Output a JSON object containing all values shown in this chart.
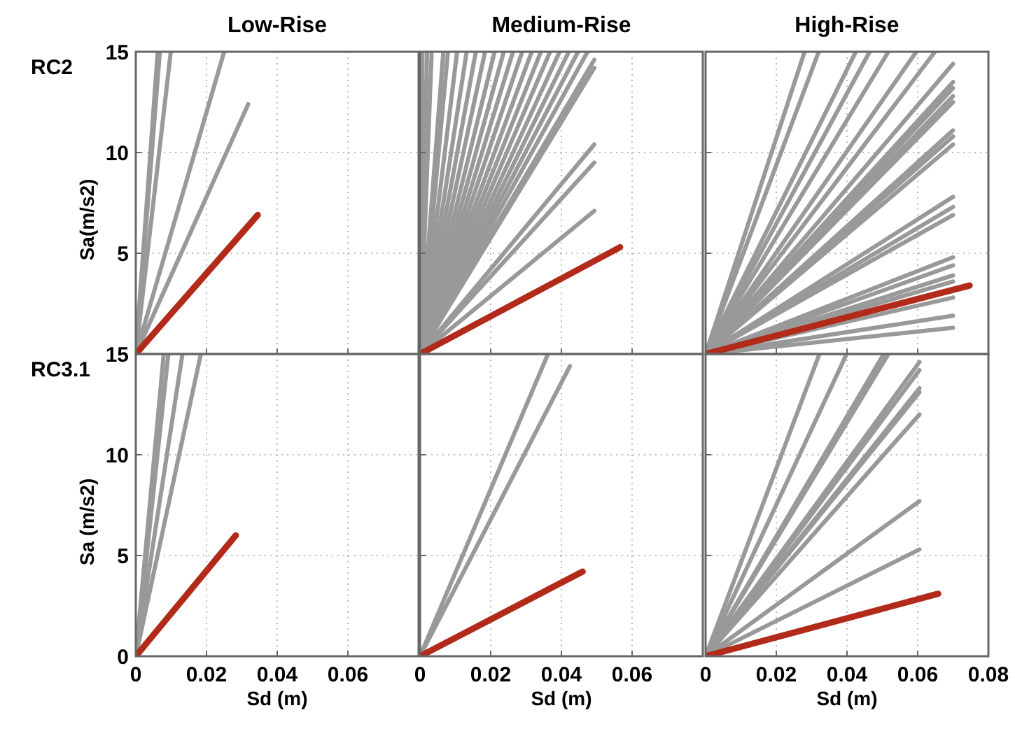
{
  "chart_data": [
    {
      "type": "line",
      "title": "Low-Rise",
      "ylabel": "Sa(m/s2)",
      "annotations": [
        "RC2"
      ],
      "xlim": [
        0,
        0.08
      ],
      "ylim": [
        0,
        15
      ],
      "xticks": [
        0,
        0.02,
        0.04,
        0.06
      ],
      "yticks": [
        5,
        10,
        15
      ],
      "grid": true,
      "tick_labels": "y",
      "marker": "none",
      "series": [
        {
          "color": "#999999",
          "x": [
            0,
            0.0062
          ],
          "values": [
            0,
            15
          ]
        },
        {
          "color": "#999999",
          "x": [
            0,
            0.0068
          ],
          "values": [
            0,
            15
          ]
        },
        {
          "color": "#999999",
          "x": [
            0,
            0.0099
          ],
          "values": [
            0,
            15
          ]
        },
        {
          "color": "#999999",
          "x": [
            0,
            0.025
          ],
          "values": [
            0,
            15
          ]
        },
        {
          "color": "#999999",
          "x": [
            0,
            0.0318
          ],
          "values": [
            0,
            12.4
          ]
        },
        {
          "color": "#b22a1a",
          "x": [
            0,
            0.0345
          ],
          "values": [
            0,
            6.9
          ]
        }
      ]
    },
    {
      "type": "line",
      "title": "Medium-Rise",
      "xlim": [
        0,
        0.08
      ],
      "ylim": [
        0,
        15
      ],
      "xticks": [
        0,
        0.02,
        0.04,
        0.06
      ],
      "yticks": [
        5,
        10,
        15
      ],
      "grid": true,
      "tick_labels": false,
      "marker": "none",
      "series": [
        {
          "color": "#999999",
          "x": [
            0,
            0.0007
          ],
          "values": [
            0,
            15
          ]
        },
        {
          "color": "#999999",
          "x": [
            0,
            0.002
          ],
          "values": [
            0,
            15
          ]
        },
        {
          "color": "#999999",
          "x": [
            0,
            0.0033
          ],
          "values": [
            0,
            15
          ]
        },
        {
          "color": "#999999",
          "x": [
            0,
            0.0066
          ],
          "values": [
            0,
            15
          ]
        },
        {
          "color": "#999999",
          "x": [
            0,
            0.0079
          ],
          "values": [
            0,
            15
          ]
        },
        {
          "color": "#999999",
          "x": [
            0,
            0.0105
          ],
          "values": [
            0,
            15
          ]
        },
        {
          "color": "#999999",
          "x": [
            0,
            0.0132
          ],
          "values": [
            0,
            15
          ]
        },
        {
          "color": "#999999",
          "x": [
            0,
            0.0158
          ],
          "values": [
            0,
            15
          ]
        },
        {
          "color": "#999999",
          "x": [
            0,
            0.0184
          ],
          "values": [
            0,
            15
          ]
        },
        {
          "color": "#999999",
          "x": [
            0,
            0.0211
          ],
          "values": [
            0,
            15
          ]
        },
        {
          "color": "#999999",
          "x": [
            0,
            0.0237
          ],
          "values": [
            0,
            15
          ]
        },
        {
          "color": "#999999",
          "x": [
            0,
            0.0263
          ],
          "values": [
            0,
            15
          ]
        },
        {
          "color": "#999999",
          "x": [
            0,
            0.0289
          ],
          "values": [
            0,
            15
          ]
        },
        {
          "color": "#999999",
          "x": [
            0,
            0.0316
          ],
          "values": [
            0,
            15
          ]
        },
        {
          "color": "#999999",
          "x": [
            0,
            0.0342
          ],
          "values": [
            0,
            15
          ]
        },
        {
          "color": "#999999",
          "x": [
            0,
            0.0368
          ],
          "values": [
            0,
            15
          ]
        },
        {
          "color": "#999999",
          "x": [
            0,
            0.0395
          ],
          "values": [
            0,
            15
          ]
        },
        {
          "color": "#999999",
          "x": [
            0,
            0.0421
          ],
          "values": [
            0,
            15
          ]
        },
        {
          "color": "#999999",
          "x": [
            0,
            0.0447
          ],
          "values": [
            0,
            15
          ]
        },
        {
          "color": "#999999",
          "x": [
            0,
            0.0474
          ],
          "values": [
            0,
            15
          ]
        },
        {
          "color": "#999999",
          "x": [
            0,
            0.0493
          ],
          "values": [
            0,
            14.6
          ]
        },
        {
          "color": "#999999",
          "x": [
            0,
            0.0493
          ],
          "values": [
            0,
            14.2
          ]
        },
        {
          "color": "#999999",
          "x": [
            0,
            0.0493
          ],
          "values": [
            0,
            10.4
          ]
        },
        {
          "color": "#999999",
          "x": [
            0,
            0.0493
          ],
          "values": [
            0,
            9.5
          ]
        },
        {
          "color": "#999999",
          "x": [
            0,
            0.0493
          ],
          "values": [
            0,
            7.1
          ]
        },
        {
          "color": "#b22a1a",
          "x": [
            0,
            0.0566
          ],
          "values": [
            0,
            5.3
          ]
        }
      ]
    },
    {
      "type": "line",
      "title": "High-Rise",
      "xlim": [
        0,
        0.08
      ],
      "ylim": [
        0,
        15
      ],
      "xticks": [
        0,
        0.02,
        0.04,
        0.06,
        0.08
      ],
      "yticks": [
        5,
        10,
        15
      ],
      "grid": true,
      "tick_labels": false,
      "marker": "none",
      "series": [
        {
          "color": "#999999",
          "x": [
            0,
            0.028
          ],
          "values": [
            0,
            15
          ]
        },
        {
          "color": "#999999",
          "x": [
            0,
            0.032
          ],
          "values": [
            0,
            15
          ]
        },
        {
          "color": "#999999",
          "x": [
            0,
            0.0425
          ],
          "values": [
            0,
            15
          ]
        },
        {
          "color": "#999999",
          "x": [
            0,
            0.0464
          ],
          "values": [
            0,
            15
          ]
        },
        {
          "color": "#999999",
          "x": [
            0,
            0.0517
          ],
          "values": [
            0,
            15
          ]
        },
        {
          "color": "#999999",
          "x": [
            0,
            0.0596
          ],
          "values": [
            0,
            15
          ]
        },
        {
          "color": "#999999",
          "x": [
            0,
            0.0649
          ],
          "values": [
            0,
            15
          ]
        },
        {
          "color": "#999999",
          "x": [
            0,
            0.07
          ],
          "values": [
            0,
            14.4
          ]
        },
        {
          "color": "#999999",
          "x": [
            0,
            0.07
          ],
          "values": [
            0,
            13.5
          ]
        },
        {
          "color": "#999999",
          "x": [
            0,
            0.07
          ],
          "values": [
            0,
            13.2
          ]
        },
        {
          "color": "#999999",
          "x": [
            0,
            0.07
          ],
          "values": [
            0,
            12.8
          ]
        },
        {
          "color": "#999999",
          "x": [
            0,
            0.07
          ],
          "values": [
            0,
            12.5
          ]
        },
        {
          "color": "#999999",
          "x": [
            0,
            0.07
          ],
          "values": [
            0,
            11.1
          ]
        },
        {
          "color": "#999999",
          "x": [
            0,
            0.07
          ],
          "values": [
            0,
            10.8
          ]
        },
        {
          "color": "#999999",
          "x": [
            0,
            0.07
          ],
          "values": [
            0,
            10.4
          ]
        },
        {
          "color": "#999999",
          "x": [
            0,
            0.07
          ],
          "values": [
            0,
            7.8
          ]
        },
        {
          "color": "#999999",
          "x": [
            0,
            0.07
          ],
          "values": [
            0,
            7.3
          ]
        },
        {
          "color": "#999999",
          "x": [
            0,
            0.07
          ],
          "values": [
            0,
            6.9
          ]
        },
        {
          "color": "#999999",
          "x": [
            0,
            0.07
          ],
          "values": [
            0,
            4.8
          ]
        },
        {
          "color": "#999999",
          "x": [
            0,
            0.07
          ],
          "values": [
            0,
            4.4
          ]
        },
        {
          "color": "#999999",
          "x": [
            0,
            0.07
          ],
          "values": [
            0,
            3.9
          ]
        },
        {
          "color": "#999999",
          "x": [
            0,
            0.07
          ],
          "values": [
            0,
            3.6
          ]
        },
        {
          "color": "#999999",
          "x": [
            0,
            0.07
          ],
          "values": [
            0,
            2.8
          ]
        },
        {
          "color": "#999999",
          "x": [
            0,
            0.07
          ],
          "values": [
            0,
            1.9
          ]
        },
        {
          "color": "#999999",
          "x": [
            0,
            0.07
          ],
          "values": [
            0,
            1.3
          ]
        },
        {
          "color": "#b22a1a",
          "x": [
            0,
            0.0747
          ],
          "values": [
            0,
            3.4
          ]
        }
      ]
    },
    {
      "type": "line",
      "xlabel": "Sd (m)",
      "ylabel": "Sa (m/s2)",
      "annotations": [
        "RC3.1"
      ],
      "xlim": [
        0,
        0.08
      ],
      "ylim": [
        0,
        15
      ],
      "xticks": [
        0,
        0.02,
        0.04,
        0.06
      ],
      "yticks": [
        0,
        5,
        10,
        15
      ],
      "grid": true,
      "marker": "none",
      "series": [
        {
          "color": "#999999",
          "x": [
            0,
            0.0079
          ],
          "values": [
            0,
            15
          ]
        },
        {
          "color": "#999999",
          "x": [
            0,
            0.0092
          ],
          "values": [
            0,
            15
          ]
        },
        {
          "color": "#999999",
          "x": [
            0,
            0.0132
          ],
          "values": [
            0,
            15
          ]
        },
        {
          "color": "#999999",
          "x": [
            0,
            0.0184
          ],
          "values": [
            0,
            15
          ]
        },
        {
          "color": "#b22a1a",
          "x": [
            0,
            0.0283
          ],
          "values": [
            0,
            6.0
          ]
        }
      ]
    },
    {
      "type": "line",
      "xlabel": "Sd (m)",
      "xlim": [
        0,
        0.08
      ],
      "ylim": [
        0,
        15
      ],
      "xticks": [
        0,
        0.02,
        0.04,
        0.06
      ],
      "yticks": [
        0,
        5,
        10,
        15
      ],
      "grid": true,
      "tick_labels": "x",
      "marker": "none",
      "series": [
        {
          "color": "#999999",
          "x": [
            0,
            0.0362
          ],
          "values": [
            0,
            15
          ]
        },
        {
          "color": "#999999",
          "x": [
            0,
            0.0424
          ],
          "values": [
            0,
            14.4
          ]
        },
        {
          "color": "#b22a1a",
          "x": [
            0,
            0.046
          ],
          "values": [
            0,
            4.2
          ]
        }
      ]
    },
    {
      "type": "line",
      "xlabel": "Sd (m)",
      "xlim": [
        0,
        0.08
      ],
      "ylim": [
        0,
        15
      ],
      "xticks": [
        0,
        0.02,
        0.04,
        0.06,
        0.08
      ],
      "yticks": [
        0,
        5,
        10,
        15
      ],
      "grid": true,
      "tick_labels": "x",
      "marker": "none",
      "series": [
        {
          "color": "#999999",
          "x": [
            0,
            0.0322
          ],
          "values": [
            0,
            15
          ]
        },
        {
          "color": "#999999",
          "x": [
            0,
            0.0399
          ],
          "values": [
            0,
            15
          ]
        },
        {
          "color": "#999999",
          "x": [
            0,
            0.0504
          ],
          "values": [
            0,
            15
          ]
        },
        {
          "color": "#999999",
          "x": [
            0,
            0.0517
          ],
          "values": [
            0,
            15
          ]
        },
        {
          "color": "#999999",
          "x": [
            0,
            0.0605
          ],
          "values": [
            0,
            14.6
          ]
        },
        {
          "color": "#999999",
          "x": [
            0,
            0.0605
          ],
          "values": [
            0,
            14.2
          ]
        },
        {
          "color": "#999999",
          "x": [
            0,
            0.0605
          ],
          "values": [
            0,
            13.3
          ]
        },
        {
          "color": "#999999",
          "x": [
            0,
            0.0605
          ],
          "values": [
            0,
            13.1
          ]
        },
        {
          "color": "#999999",
          "x": [
            0,
            0.0605
          ],
          "values": [
            0,
            12.0
          ]
        },
        {
          "color": "#999999",
          "x": [
            0,
            0.0605
          ],
          "values": [
            0,
            7.7
          ]
        },
        {
          "color": "#999999",
          "x": [
            0,
            0.0605
          ],
          "values": [
            0,
            5.3
          ]
        },
        {
          "color": "#b22a1a",
          "x": [
            0,
            0.0658
          ],
          "values": [
            0,
            3.1
          ]
        }
      ]
    }
  ]
}
